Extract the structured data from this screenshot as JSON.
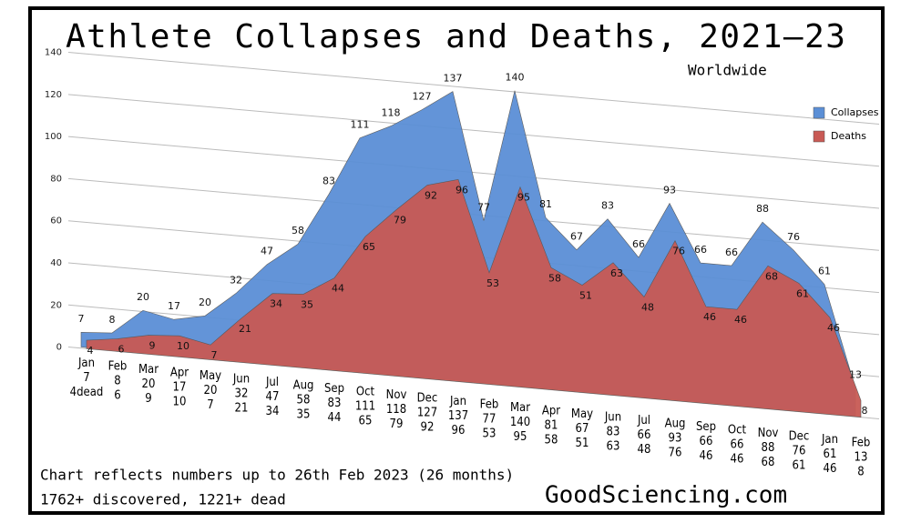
{
  "chart_data": {
    "type": "area",
    "title": "Athlete Collapses and Deaths, 2021—23",
    "subtitle": "Worldwide",
    "categories": [
      "Jan",
      "Feb",
      "Mar",
      "Apr",
      "May",
      "Jun",
      "Jul",
      "Aug",
      "Sep",
      "Oct",
      "Nov",
      "Dec",
      "Jan",
      "Feb",
      "Mar",
      "Apr",
      "May",
      "Jun",
      "Jul",
      "Aug",
      "Sep",
      "Oct",
      "Nov",
      "Dec",
      "Jan",
      "Feb"
    ],
    "series": [
      {
        "name": "Collapses",
        "color": "#5b8fd6",
        "values": [
          7,
          8,
          20,
          17,
          20,
          32,
          47,
          58,
          83,
          111,
          118,
          127,
          137,
          77,
          140,
          81,
          67,
          83,
          66,
          93,
          66,
          66,
          88,
          76,
          61,
          13
        ]
      },
      {
        "name": "Deaths",
        "color": "#c85a55",
        "values": [
          4,
          6,
          9,
          10,
          7,
          21,
          34,
          35,
          44,
          65,
          79,
          92,
          96,
          53,
          95,
          58,
          51,
          63,
          48,
          76,
          46,
          46,
          68,
          61,
          46,
          8
        ],
        "value_labels": [
          "4dead",
          "6",
          "9",
          "10",
          "7",
          "21",
          "34",
          "35",
          "44",
          "65",
          "79",
          "92",
          "96",
          "53",
          "95",
          "58",
          "51",
          "63",
          "48",
          "76",
          "46",
          "46",
          "68",
          "61",
          "46",
          "8"
        ]
      }
    ],
    "ylim": [
      0,
      140
    ],
    "yticks": [
      0,
      20,
      40,
      60,
      80,
      100,
      120,
      140
    ],
    "grid": true,
    "legend": "top-right",
    "notes": [
      "Chart reflects numbers up to 26th Feb 2023 (26 months)",
      "1762+ discovered, 1221+ dead"
    ],
    "source": "GoodSciencing.com"
  }
}
